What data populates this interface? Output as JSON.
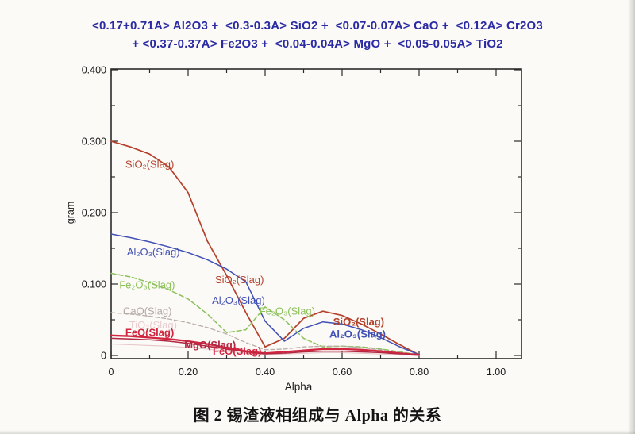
{
  "figure": {
    "caption": "图 2  锡渣液相组成与 Alpha 的关系"
  },
  "chart_data": {
    "type": "line",
    "title_line1": "<0.17+0.71A> Al2O3 +  <0.3-0.3A> SiO2 +  <0.07-0.07A> CaO +  <0.12A> Cr2O3",
    "title_line2": "+ <0.37-0.37A> Fe2O3 +  <0.04-0.04A> MgO +  <0.05-0.05A> TiO2",
    "xlabel": "Alpha",
    "ylabel": "gram",
    "xlim": [
      0,
      1.0
    ],
    "ylim": [
      0,
      0.4
    ],
    "grid": false,
    "legend": "inline curve labels",
    "title_color": "#2a2aa4",
    "axis_color": "#2b2b2b",
    "x_ticks": {
      "major": [
        {
          "v": 0.0,
          "t": "0"
        },
        {
          "v": 0.2,
          "t": "0.20"
        },
        {
          "v": 0.4,
          "t": "0.40"
        },
        {
          "v": 0.6,
          "t": "0.60"
        },
        {
          "v": 0.8,
          "t": "0.80"
        },
        {
          "v": 1.0,
          "t": "1.00"
        }
      ],
      "minor": [
        0.1,
        0.3,
        0.5,
        0.7,
        0.9
      ]
    },
    "y_ticks": {
      "major": [
        {
          "v": 0.0,
          "t": "0"
        },
        {
          "v": 0.1,
          "t": "0.100"
        },
        {
          "v": 0.2,
          "t": "0.200"
        },
        {
          "v": 0.3,
          "t": "0.300"
        },
        {
          "v": 0.4,
          "t": "0.400"
        }
      ],
      "minor": [
        0.05,
        0.15,
        0.25,
        0.35
      ]
    },
    "x": [
      0,
      0.05,
      0.1,
      0.15,
      0.2,
      0.25,
      0.3,
      0.35,
      0.4,
      0.45,
      0.5,
      0.55,
      0.6,
      0.65,
      0.7,
      0.75,
      0.8
    ],
    "series": [
      {
        "id": "sio2-slag",
        "name": "SiO2(Slag)",
        "color": "#b4402b",
        "width": 1.7,
        "dash": null,
        "opacity": 1,
        "values": [
          0.3,
          0.292,
          0.282,
          0.264,
          0.228,
          0.16,
          0.112,
          0.06,
          0.012,
          0.024,
          0.052,
          0.062,
          0.056,
          0.044,
          0.03,
          0.015,
          0.001
        ]
      },
      {
        "id": "al2o3-slag",
        "name": "Al2O3(Slag)",
        "color": "#4150b4",
        "width": 1.5,
        "dash": null,
        "opacity": 1,
        "values": [
          0.17,
          0.165,
          0.159,
          0.152,
          0.144,
          0.134,
          0.121,
          0.103,
          0.048,
          0.02,
          0.038,
          0.047,
          0.044,
          0.036,
          0.025,
          0.012,
          0.001
        ]
      },
      {
        "id": "fe2o3-slag",
        "name": "Fe2O3(Slag)",
        "color": "#8cc05a",
        "width": 1.5,
        "dash": "6 3",
        "opacity": 1,
        "values": [
          0.115,
          0.11,
          0.102,
          0.092,
          0.079,
          0.058,
          0.032,
          0.036,
          0.068,
          0.05,
          0.024,
          0.012,
          0.013,
          0.012,
          0.009,
          0.005,
          0.001
        ]
      },
      {
        "id": "cao-slag",
        "name": "CaO(Slag)",
        "color": "#b9aca6",
        "width": 1.3,
        "dash": "5 3",
        "opacity": 1,
        "values": [
          0.06,
          0.058,
          0.055,
          0.051,
          0.046,
          0.039,
          0.03,
          0.018,
          0.008,
          0.009,
          0.012,
          0.013,
          0.013,
          0.011,
          0.008,
          0.004,
          0.001
        ]
      },
      {
        "id": "feo-slag",
        "name": "FeO(Slag)",
        "color": "#d22540",
        "width": 2.3,
        "dash": null,
        "opacity": 1,
        "values": [
          0.028,
          0.027,
          0.025,
          0.023,
          0.02,
          0.016,
          0.011,
          0.006,
          0.003,
          0.005,
          0.007,
          0.009,
          0.009,
          0.008,
          0.006,
          0.003,
          0.001
        ]
      },
      {
        "id": "mgo-slag",
        "name": "MgO(Slag)",
        "color": "#b22742",
        "width": 1.5,
        "dash": null,
        "opacity": 1,
        "values": [
          0.024,
          0.023,
          0.022,
          0.02,
          0.017,
          0.013,
          0.009,
          0.005,
          0.002,
          0.003,
          0.005,
          0.006,
          0.006,
          0.005,
          0.004,
          0.002,
          0.0
        ]
      },
      {
        "id": "tio2-slag",
        "name": "TiO2(Slag)",
        "color": "#d9a3ac",
        "width": 1.1,
        "dash": null,
        "opacity": 0.6,
        "values": [
          0.016,
          0.015,
          0.014,
          0.013,
          0.011,
          0.009,
          0.006,
          0.003,
          0.001,
          0.002,
          0.003,
          0.004,
          0.004,
          0.003,
          0.002,
          0.001,
          0.0
        ]
      }
    ],
    "labels": [
      {
        "text": "SiO₂(Slag)",
        "x": 0.037,
        "y": 0.263,
        "color": "#b4402b",
        "bold": false,
        "opacity": 1
      },
      {
        "text": "Al₂O₃(Slag)",
        "x": 0.041,
        "y": 0.14,
        "color": "#4150b4",
        "bold": false,
        "opacity": 1
      },
      {
        "text": "Fe₂O₃(Slag)",
        "x": 0.021,
        "y": 0.094,
        "color": "#8cc05a",
        "bold": false,
        "opacity": 1
      },
      {
        "text": "CaO(Slag)",
        "x": 0.031,
        "y": 0.057,
        "color": "#b5a8a5",
        "bold": false,
        "opacity": 1
      },
      {
        "text": "TiO₂(Slag)",
        "x": 0.047,
        "y": 0.038,
        "color": "#d9a3ac",
        "bold": false,
        "opacity": 0.55
      },
      {
        "text": "FeO(Slag)",
        "x": 0.037,
        "y": 0.027,
        "color": "#d22540",
        "bold": true,
        "opacity": 1
      },
      {
        "text": "MgO(Slag)",
        "x": 0.19,
        "y": 0.01,
        "color": "#b22742",
        "bold": true,
        "opacity": 1
      },
      {
        "text": "FeO(Slag)",
        "x": 0.264,
        "y": 0.001,
        "color": "#d22540",
        "bold": true,
        "opacity": 1
      },
      {
        "text": "SiO₂(Slag)",
        "x": 0.27,
        "y": 0.101,
        "color": "#b4402b",
        "bold": false,
        "opacity": 1
      },
      {
        "text": "Al₂O₃(Slag)",
        "x": 0.262,
        "y": 0.072,
        "color": "#4150b4",
        "bold": false,
        "opacity": 1
      },
      {
        "text": "Fe₂O₃(Slag)",
        "x": 0.385,
        "y": 0.057,
        "color": "#8cc05a",
        "bold": false,
        "opacity": 1
      },
      {
        "text": "SiO₂(Slag)",
        "x": 0.577,
        "y": 0.042,
        "color": "#b4402b",
        "bold": true,
        "opacity": 1
      },
      {
        "text": "Al₂O₃(Slag)",
        "x": 0.567,
        "y": 0.025,
        "color": "#4150b4",
        "bold": true,
        "opacity": 1
      }
    ]
  }
}
